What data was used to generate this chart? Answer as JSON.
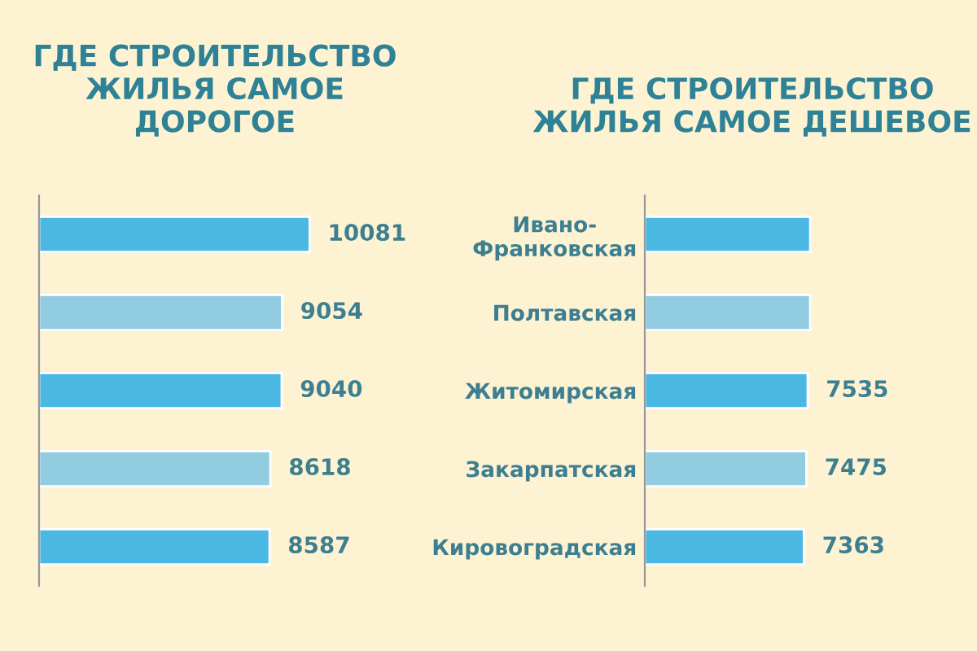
{
  "chart_data": [
    {
      "type": "bar",
      "orientation": "horizontal",
      "title": "ГДЕ СТРОИТЕЛЬСТВО ЖИЛЬЯ САМОЕ ДОРОГОЕ",
      "categories": [
        null,
        null,
        null,
        null,
        null
      ],
      "values": [
        10081,
        9054,
        9040,
        8618,
        8587
      ],
      "colors": [
        "#4ab8e3",
        "#92cce0",
        "#4ab8e3",
        "#92cce0",
        "#4ab8e3"
      ],
      "data_labels": true,
      "tick_labels": false
    },
    {
      "type": "bar",
      "orientation": "horizontal",
      "title": "ГДЕ СТРОИТЕЛЬСТВО ЖИЛЬЯ САМОЕ ДЕШЕВОЕ",
      "categories": [
        "Ивано-\nФранковская",
        "Полтавская",
        "Житомирская",
        "Закарпатская",
        "Кировоградская"
      ],
      "values": [
        7650,
        7650,
        7535,
        7475,
        7363
      ],
      "value_labels": [
        null,
        null,
        "7535",
        "7475",
        "7363"
      ],
      "colors": [
        "#4ab8e3",
        "#92cce0",
        "#4ab8e3",
        "#92cce0",
        "#4ab8e3"
      ],
      "tick_labels": "y"
    }
  ]
}
